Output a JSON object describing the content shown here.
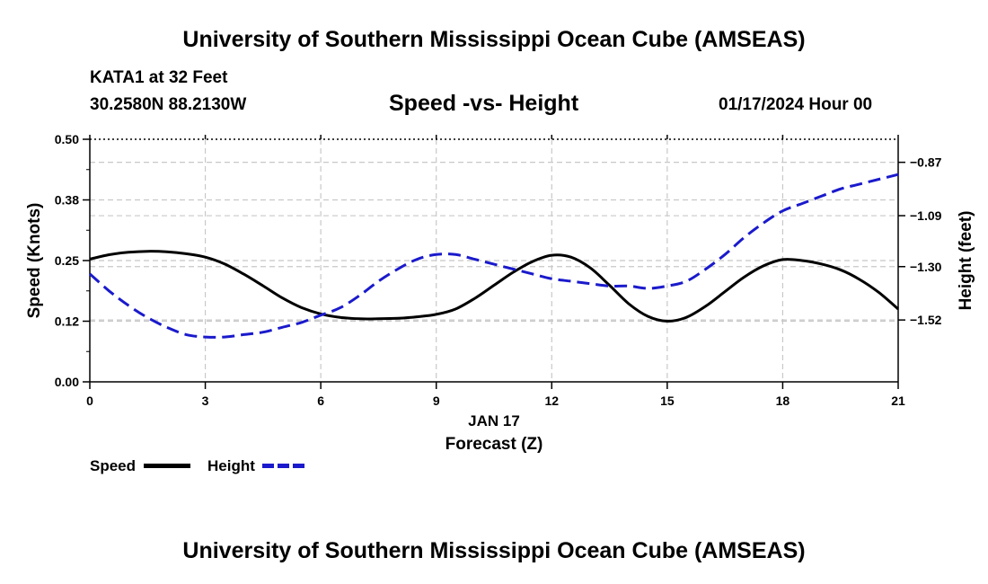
{
  "header": {
    "title": "University of Southern Mississippi Ocean Cube (AMSEAS)",
    "station": "KATA1 at 32 Feet",
    "coords": "30.2580N  88.2130W",
    "subtitle": "Speed -vs- Height",
    "date": "01/17/2024 Hour 00"
  },
  "footer": {
    "title": "University of Southern Mississippi Ocean Cube (AMSEAS)"
  },
  "legend": {
    "speed_label": "Speed",
    "height_label": "Height"
  },
  "colors": {
    "speed": "#000000",
    "height": "#1a1acc",
    "grid": "#c8c8c8"
  },
  "chart_data": {
    "type": "line",
    "title": "Speed -vs- Height",
    "xlabel": "Forecast (Z)",
    "xlabel_date": "JAN 17",
    "ylabel": "Speed (Knots)",
    "y2label": "Height (feet)",
    "xlim": [
      0,
      21
    ],
    "ylim": [
      0,
      0.5
    ],
    "y2lim": [
      -1.775,
      -0.775
    ],
    "x_ticks": [
      0,
      3,
      6,
      9,
      12,
      15,
      18,
      21
    ],
    "x_tick_labels": [
      "0",
      "3",
      "6",
      "9",
      "12",
      "15",
      "18",
      "21"
    ],
    "y_ticks": [
      0,
      0.125,
      0.25,
      0.375,
      0.5
    ],
    "y_tick_labels": [
      "0.00",
      "0.12",
      "0.25",
      "0.38",
      "0.50"
    ],
    "y2_ticks": [
      -1.52,
      -1.3,
      -1.09,
      -0.87
    ],
    "y2_tick_labels": [
      "−1.52",
      "−1.30",
      "−1.09",
      "−0.87"
    ],
    "grid": true,
    "series": [
      {
        "name": "Speed",
        "axis": "left",
        "style": "solid",
        "x": [
          0,
          0.5,
          1,
          1.5,
          2,
          2.5,
          3,
          3.5,
          4,
          4.5,
          5,
          5.5,
          6,
          6.5,
          7,
          7.5,
          8,
          8.5,
          9,
          9.5,
          10,
          10.5,
          11,
          11.5,
          12,
          12.5,
          13,
          13.5,
          14,
          14.5,
          15,
          15.5,
          16,
          16.5,
          17,
          17.5,
          18,
          18.5,
          19,
          19.5,
          20,
          20.5,
          21
        ],
        "values": [
          0.253,
          0.262,
          0.267,
          0.269,
          0.268,
          0.264,
          0.257,
          0.243,
          0.222,
          0.198,
          0.173,
          0.153,
          0.14,
          0.133,
          0.13,
          0.13,
          0.131,
          0.134,
          0.139,
          0.15,
          0.172,
          0.199,
          0.226,
          0.248,
          0.261,
          0.257,
          0.235,
          0.199,
          0.161,
          0.135,
          0.125,
          0.133,
          0.156,
          0.186,
          0.216,
          0.239,
          0.252,
          0.25,
          0.243,
          0.231,
          0.211,
          0.184,
          0.15
        ]
      },
      {
        "name": "Height",
        "axis": "right",
        "style": "dashed",
        "x": [
          0,
          0.5,
          1,
          1.5,
          2,
          2.5,
          3,
          3.5,
          4,
          4.5,
          5,
          5.5,
          6,
          6.5,
          7,
          7.5,
          8,
          8.5,
          9,
          9.5,
          10,
          10.5,
          11,
          11.5,
          12,
          12.5,
          13,
          13.5,
          14,
          14.5,
          15,
          15.5,
          16,
          16.5,
          17,
          17.5,
          18,
          18.5,
          19,
          19.5,
          20,
          20.5,
          21
        ],
        "values": [
          -1.33,
          -1.4,
          -1.46,
          -1.51,
          -1.55,
          -1.58,
          -1.59,
          -1.59,
          -1.58,
          -1.57,
          -1.55,
          -1.53,
          -1.5,
          -1.47,
          -1.42,
          -1.36,
          -1.31,
          -1.27,
          -1.25,
          -1.25,
          -1.27,
          -1.29,
          -1.31,
          -1.33,
          -1.35,
          -1.36,
          -1.37,
          -1.38,
          -1.38,
          -1.39,
          -1.38,
          -1.36,
          -1.31,
          -1.25,
          -1.18,
          -1.12,
          -1.07,
          -1.04,
          -1.01,
          -0.98,
          -0.96,
          -0.94,
          -0.92
        ]
      }
    ]
  }
}
